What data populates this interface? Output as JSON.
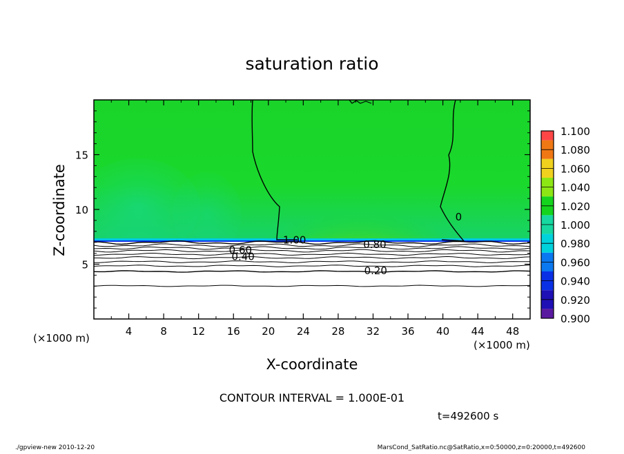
{
  "chart_data": {
    "type": "heatmap",
    "title": "saturation ratio",
    "xlabel": "X-coordinate",
    "ylabel": "Z-coordinate",
    "x_unit": "(×1000 m)",
    "x_unit_right": "(×1000 m)",
    "xlim": [
      0,
      50
    ],
    "ylim": [
      0,
      20
    ],
    "x_ticks": [
      4,
      8,
      12,
      16,
      20,
      24,
      28,
      32,
      36,
      40,
      44,
      48
    ],
    "y_ticks": [
      5,
      10,
      15
    ],
    "colorbar": {
      "levels": [
        0.9,
        0.92,
        0.94,
        0.96,
        0.98,
        1.0,
        1.02,
        1.04,
        1.06,
        1.08,
        1.1
      ],
      "labels": [
        "0.900",
        "0.920",
        "0.940",
        "0.960",
        "0.980",
        "1.000",
        "1.020",
        "1.040",
        "1.060",
        "1.080",
        "1.100"
      ],
      "colors": [
        "#5a1aa0",
        "#1e10b4",
        "#0a30e6",
        "#0a78f0",
        "#00d2dc",
        "#16d8a0",
        "#14d41e",
        "#8ce614",
        "#f0d21e",
        "#f07814",
        "#ff4646",
        "#ffaaaa"
      ]
    },
    "contour_labels": [
      {
        "text": "1.00",
        "x": 23.0,
        "y": 7.2
      },
      {
        "text": "0.80",
        "x": 32.2,
        "y": 6.8
      },
      {
        "text": "0.60",
        "x": 16.8,
        "y": 6.3
      },
      {
        "text": "0.40",
        "x": 17.1,
        "y": 5.7
      },
      {
        "text": "0.20",
        "x": 32.3,
        "y": 4.4
      },
      {
        "text": "0",
        "x": 41.8,
        "y": 9.3
      }
    ],
    "contour_interval_text": "CONTOUR INTERVAL = 1.000E-01",
    "time_text": "t=492600  s",
    "footer_left": "./gpview-new   2010-12-20",
    "footer_right": "MarsCond_SatRatio.nc@SatRatio,x=0:50000,z=0:20000,t=492600"
  }
}
